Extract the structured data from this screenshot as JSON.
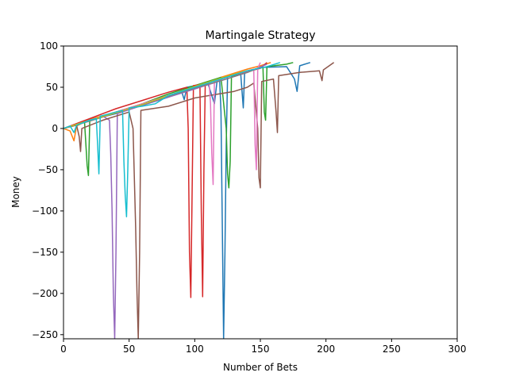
{
  "chart_data": {
    "type": "line",
    "title": "Martingale Strategy",
    "xlabel": "Number of Bets",
    "ylabel": "Money",
    "xlim": [
      0,
      300
    ],
    "ylim": [
      -255,
      100
    ],
    "xticks": [
      0,
      50,
      100,
      150,
      200,
      250,
      300
    ],
    "yticks": [
      -250,
      -200,
      -150,
      -100,
      -50,
      0,
      50,
      100
    ],
    "ytick_labels": [
      "−250",
      "−200",
      "−150",
      "−100",
      "−50",
      "0",
      "50",
      "100"
    ],
    "grid": false,
    "legend": "none",
    "series": [
      {
        "color": "#1f77b4",
        "points": [
          [
            0,
            0
          ],
          [
            20,
            10
          ],
          [
            40,
            18
          ],
          [
            60,
            28
          ],
          [
            80,
            38
          ],
          [
            90,
            45
          ],
          [
            92,
            35
          ],
          [
            94,
            50
          ],
          [
            110,
            55
          ],
          [
            115,
            30
          ],
          [
            117,
            57
          ],
          [
            119,
            60
          ],
          [
            120,
            20
          ],
          [
            121,
            -120
          ],
          [
            122,
            -255
          ],
          [
            123,
            -150
          ],
          [
            124,
            -20
          ],
          [
            125,
            63
          ],
          [
            135,
            67
          ],
          [
            137,
            25
          ],
          [
            138,
            68
          ],
          [
            150,
            74
          ],
          [
            170,
            75
          ],
          [
            176,
            60
          ],
          [
            178,
            45
          ],
          [
            180,
            76
          ],
          [
            188,
            80
          ]
        ]
      },
      {
        "color": "#ff7f0e",
        "points": [
          [
            0,
            0
          ],
          [
            5,
            -3
          ],
          [
            8,
            -15
          ],
          [
            10,
            3
          ],
          [
            20,
            11
          ],
          [
            40,
            20
          ],
          [
            60,
            30
          ],
          [
            80,
            40
          ],
          [
            100,
            50
          ],
          [
            120,
            62
          ],
          [
            140,
            72
          ],
          [
            150,
            76
          ],
          [
            158,
            80
          ]
        ]
      },
      {
        "color": "#2ca02c",
        "points": [
          [
            0,
            0
          ],
          [
            10,
            5
          ],
          [
            16,
            8
          ],
          [
            18,
            -45
          ],
          [
            19,
            -57
          ],
          [
            20,
            10
          ],
          [
            40,
            20
          ],
          [
            60,
            30
          ],
          [
            80,
            42
          ],
          [
            100,
            52
          ],
          [
            120,
            62
          ],
          [
            124,
            0
          ],
          [
            125,
            -55
          ],
          [
            126,
            -72
          ],
          [
            127,
            -40
          ],
          [
            128,
            63
          ],
          [
            140,
            70
          ],
          [
            152,
            74
          ],
          [
            153,
            20
          ],
          [
            154,
            10
          ],
          [
            155,
            75
          ],
          [
            170,
            78
          ],
          [
            175,
            80
          ]
        ]
      },
      {
        "color": "#d62728",
        "points": [
          [
            0,
            0
          ],
          [
            20,
            12
          ],
          [
            40,
            24
          ],
          [
            60,
            34
          ],
          [
            80,
            44
          ],
          [
            94,
            50
          ],
          [
            95,
            0
          ],
          [
            96,
            -150
          ],
          [
            97,
            -205
          ],
          [
            98,
            -80
          ],
          [
            99,
            52
          ],
          [
            104,
            53
          ],
          [
            105,
            -100
          ],
          [
            106,
            -204
          ],
          [
            107,
            -50
          ],
          [
            108,
            55
          ],
          [
            130,
            65
          ],
          [
            150,
            73
          ],
          [
            155,
            80
          ]
        ]
      },
      {
        "color": "#9467bd",
        "points": [
          [
            0,
            0
          ],
          [
            20,
            10
          ],
          [
            30,
            15
          ],
          [
            35,
            10
          ],
          [
            36,
            -30
          ],
          [
            37,
            -100
          ],
          [
            38,
            -200
          ],
          [
            39,
            -255
          ],
          [
            40,
            -150
          ],
          [
            41,
            18
          ],
          [
            60,
            28
          ],
          [
            80,
            38
          ],
          [
            100,
            48
          ],
          [
            120,
            58
          ],
          [
            140,
            68
          ],
          [
            155,
            78
          ]
        ]
      },
      {
        "color": "#8c564b",
        "points": [
          [
            0,
            0
          ],
          [
            10,
            4
          ],
          [
            12,
            -10
          ],
          [
            13,
            -28
          ],
          [
            14,
            0
          ],
          [
            30,
            10
          ],
          [
            50,
            20
          ],
          [
            53,
            0
          ],
          [
            55,
            -120
          ],
          [
            56,
            -200
          ],
          [
            57,
            -255
          ],
          [
            58,
            -150
          ],
          [
            59,
            22
          ],
          [
            80,
            27
          ],
          [
            100,
            37
          ],
          [
            130,
            45
          ],
          [
            140,
            50
          ],
          [
            145,
            55
          ],
          [
            148,
            0
          ],
          [
            149,
            -60
          ],
          [
            150,
            -72
          ],
          [
            151,
            57
          ],
          [
            160,
            60
          ],
          [
            162,
            20
          ],
          [
            163,
            -5
          ],
          [
            164,
            64
          ],
          [
            180,
            68
          ],
          [
            195,
            70
          ],
          [
            197,
            58
          ],
          [
            198,
            71
          ],
          [
            206,
            80
          ]
        ]
      },
      {
        "color": "#e377c2",
        "points": [
          [
            0,
            0
          ],
          [
            20,
            10
          ],
          [
            40,
            20
          ],
          [
            60,
            30
          ],
          [
            80,
            40
          ],
          [
            100,
            50
          ],
          [
            111,
            56
          ],
          [
            112,
            30
          ],
          [
            113,
            -30
          ],
          [
            114,
            -68
          ],
          [
            115,
            57
          ],
          [
            130,
            65
          ],
          [
            145,
            72
          ],
          [
            146,
            -20
          ],
          [
            147,
            -50
          ],
          [
            148,
            73
          ],
          [
            150,
            80
          ]
        ]
      },
      {
        "color": "#7f7f7f",
        "points": [
          [
            0,
            0
          ],
          [
            20,
            9
          ],
          [
            40,
            19
          ],
          [
            60,
            29
          ],
          [
            80,
            39
          ],
          [
            100,
            49
          ],
          [
            120,
            58
          ],
          [
            140,
            68
          ],
          [
            150,
            74
          ]
        ]
      },
      {
        "color": "#bcbd22",
        "points": [
          [
            0,
            0
          ],
          [
            20,
            10
          ],
          [
            40,
            19
          ],
          [
            60,
            29
          ],
          [
            80,
            40
          ],
          [
            100,
            51
          ],
          [
            120,
            61
          ],
          [
            135,
            68
          ],
          [
            140,
            70
          ]
        ]
      },
      {
        "color": "#17becf",
        "points": [
          [
            0,
            0
          ],
          [
            5,
            3
          ],
          [
            8,
            -5
          ],
          [
            10,
            4
          ],
          [
            20,
            10
          ],
          [
            25,
            12
          ],
          [
            26,
            -20
          ],
          [
            27,
            -55
          ],
          [
            28,
            15
          ],
          [
            40,
            20
          ],
          [
            45,
            22
          ],
          [
            46,
            -40
          ],
          [
            47,
            -80
          ],
          [
            48,
            -107
          ],
          [
            49,
            -50
          ],
          [
            50,
            25
          ],
          [
            60,
            27
          ],
          [
            70,
            30
          ],
          [
            80,
            40
          ],
          [
            100,
            50
          ],
          [
            120,
            60
          ],
          [
            140,
            70
          ],
          [
            155,
            75
          ],
          [
            165,
            80
          ]
        ]
      }
    ]
  }
}
